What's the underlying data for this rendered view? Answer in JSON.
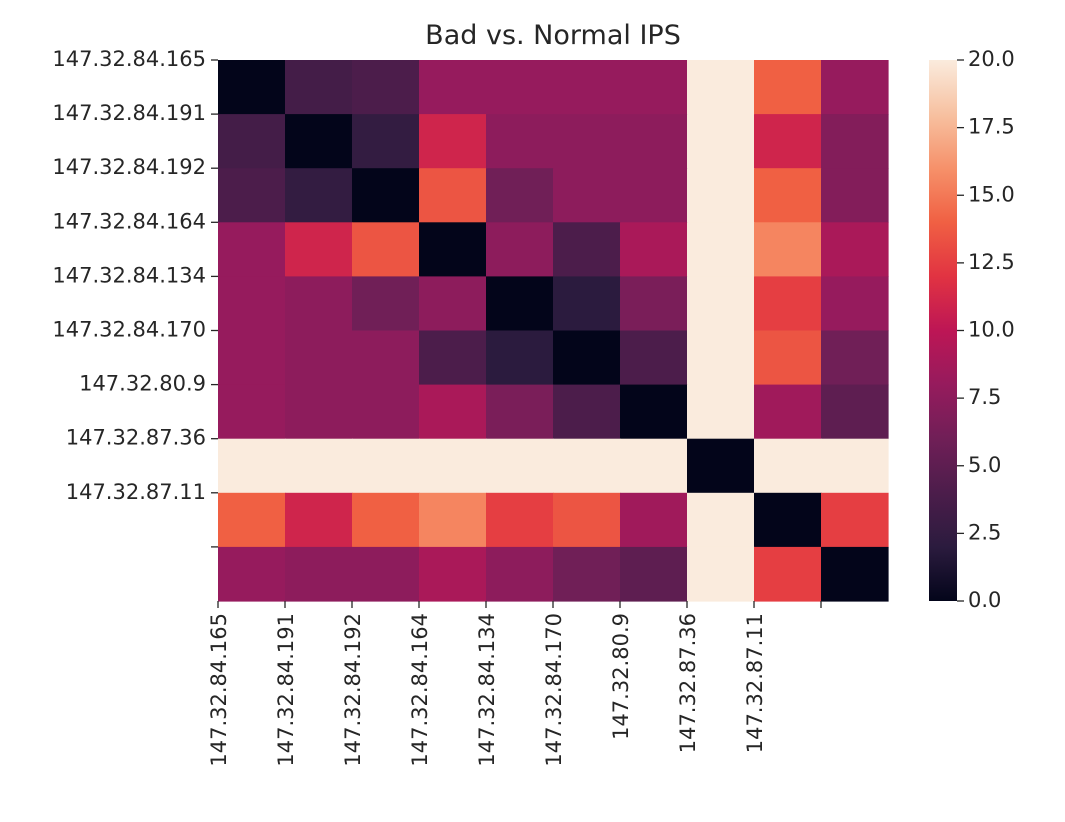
{
  "chart_data": {
    "type": "heatmap",
    "title": "Bad vs. Normal IPS",
    "xlabel": "",
    "ylabel": "",
    "y_tick_labels": [
      "147.32.84.165",
      "147.32.84.191",
      "147.32.84.192",
      "147.32.84.164",
      "147.32.84.134",
      "147.32.84.170",
      "147.32.80.9",
      "147.32.87.36",
      "147.32.87.11",
      ""
    ],
    "x_tick_labels": [
      "147.32.84.165",
      "147.32.84.191",
      "147.32.84.192",
      "147.32.84.164",
      "147.32.84.134",
      "147.32.84.170",
      "147.32.80.9",
      "147.32.87.36",
      "147.32.87.11",
      ""
    ],
    "values": [
      [
        0.0,
        3.5,
        4.0,
        8.0,
        8.0,
        8.0,
        8.0,
        20.0,
        14.0,
        8.0
      ],
      [
        3.5,
        0.0,
        2.5,
        11.0,
        7.5,
        7.5,
        7.5,
        20.0,
        11.0,
        7.0
      ],
      [
        4.0,
        2.5,
        0.0,
        13.5,
        6.0,
        7.5,
        7.5,
        20.0,
        14.0,
        7.0
      ],
      [
        8.0,
        11.0,
        13.5,
        0.0,
        7.5,
        4.0,
        9.0,
        20.0,
        15.5,
        9.0
      ],
      [
        8.0,
        7.5,
        6.0,
        7.5,
        0.0,
        2.0,
        6.5,
        20.0,
        12.5,
        8.0
      ],
      [
        8.0,
        7.5,
        7.5,
        4.0,
        2.0,
        0.0,
        4.0,
        20.0,
        13.5,
        6.0
      ],
      [
        8.0,
        7.5,
        7.5,
        9.0,
        6.5,
        4.0,
        0.0,
        20.0,
        8.5,
        5.0
      ],
      [
        20.0,
        20.0,
        20.0,
        20.0,
        20.0,
        20.0,
        20.0,
        0.0,
        20.0,
        20.0
      ],
      [
        14.0,
        11.0,
        14.0,
        15.5,
        12.5,
        13.5,
        8.5,
        20.0,
        0.0,
        12.5
      ],
      [
        8.0,
        7.5,
        7.5,
        9.0,
        7.5,
        6.0,
        5.0,
        20.0,
        12.5,
        0.0
      ]
    ],
    "value_range": [
      0.0,
      20.0
    ],
    "colorbar_ticks": [
      "0.0",
      "2.5",
      "5.0",
      "7.5",
      "10.0",
      "12.5",
      "15.0",
      "17.5",
      "20.0"
    ],
    "colormap_stops": [
      "#03051a",
      "#2b1b3e",
      "#4c1d4b",
      "#701f57",
      "#961b5d",
      "#bd1655",
      "#e13342",
      "#f06043",
      "#f6916a",
      "#f7c1a1",
      "#faebdd"
    ],
    "grid": false,
    "colorbar": "right"
  }
}
